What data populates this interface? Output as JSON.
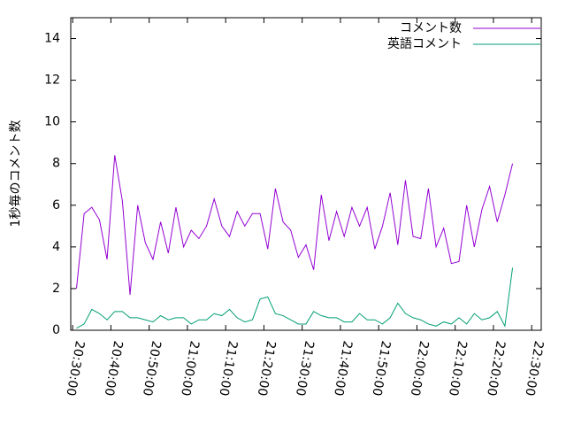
{
  "chart_data": {
    "type": "line",
    "ylabel": "1秒毎のコメント数",
    "x": [
      "20:31:00",
      "20:33:00",
      "20:35:00",
      "20:37:00",
      "20:39:00",
      "20:41:00",
      "20:43:00",
      "20:45:00",
      "20:47:00",
      "20:49:00",
      "20:51:00",
      "20:53:00",
      "20:55:00",
      "20:57:00",
      "20:59:00",
      "21:01:00",
      "21:03:00",
      "21:05:00",
      "21:07:00",
      "21:09:00",
      "21:11:00",
      "21:13:00",
      "21:15:00",
      "21:17:00",
      "21:19:00",
      "21:21:00",
      "21:23:00",
      "21:25:00",
      "21:27:00",
      "21:29:00",
      "21:31:00",
      "21:33:00",
      "21:35:00",
      "21:37:00",
      "21:39:00",
      "21:41:00",
      "21:43:00",
      "21:45:00",
      "21:47:00",
      "21:49:00",
      "21:51:00",
      "21:53:00",
      "21:55:00",
      "21:57:00",
      "21:59:00",
      "22:01:00",
      "22:03:00",
      "22:05:00",
      "22:07:00",
      "22:09:00",
      "22:11:00",
      "22:13:00",
      "22:15:00",
      "22:17:00",
      "22:19:00",
      "22:21:00",
      "22:23:00",
      "22:25:00"
    ],
    "series": [
      {
        "name": "コメント数",
        "color": "#9400d3",
        "values": [
          2.0,
          5.6,
          5.9,
          5.3,
          3.4,
          8.4,
          6.2,
          1.7,
          6.0,
          4.2,
          3.4,
          5.2,
          3.7,
          5.9,
          4.0,
          4.8,
          4.4,
          5.0,
          6.3,
          5.0,
          4.5,
          5.7,
          5.0,
          5.6,
          5.6,
          3.9,
          6.8,
          5.2,
          4.8,
          3.5,
          4.1,
          2.9,
          6.5,
          4.3,
          5.7,
          4.5,
          5.9,
          5.0,
          5.9,
          3.9,
          5.0,
          6.6,
          4.1,
          7.2,
          4.5,
          4.4,
          6.8,
          4.0,
          4.9,
          3.2,
          3.3,
          6.0,
          4.0,
          5.8,
          6.9,
          5.2,
          6.5,
          8.0
        ]
      },
      {
        "name": "英語コメント",
        "color": "#009e73",
        "values": [
          0.1,
          0.3,
          1.0,
          0.8,
          0.5,
          0.9,
          0.9,
          0.6,
          0.6,
          0.5,
          0.4,
          0.7,
          0.5,
          0.6,
          0.6,
          0.3,
          0.5,
          0.5,
          0.8,
          0.7,
          1.0,
          0.6,
          0.4,
          0.5,
          1.5,
          1.6,
          0.8,
          0.7,
          0.5,
          0.3,
          0.3,
          0.9,
          0.7,
          0.6,
          0.6,
          0.4,
          0.4,
          0.8,
          0.5,
          0.5,
          0.3,
          0.6,
          1.3,
          0.8,
          0.6,
          0.5,
          0.3,
          0.2,
          0.4,
          0.3,
          0.6,
          0.3,
          0.8,
          0.5,
          0.6,
          0.9,
          0.2,
          3.0
        ]
      }
    ],
    "xlim": [
      "20:29:30",
      "22:32:30"
    ],
    "xticks": [
      "20:30:00",
      "20:40:00",
      "20:50:00",
      "21:00:00",
      "21:10:00",
      "21:20:00",
      "21:30:00",
      "21:40:00",
      "21:50:00",
      "22:00:00",
      "22:10:00",
      "22:20:00",
      "22:30:00"
    ],
    "ylim": [
      0,
      15
    ],
    "yticks": [
      0,
      2,
      4,
      6,
      8,
      10,
      12,
      14
    ],
    "legend": "top-right"
  }
}
